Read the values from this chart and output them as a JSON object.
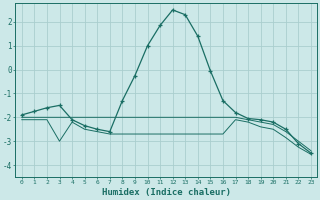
{
  "xlabel": "Humidex (Indice chaleur)",
  "bg_color": "#cce8e8",
  "grid_color": "#aacece",
  "line_color": "#1a6e64",
  "ylim": [
    -4.5,
    2.8
  ],
  "xlim": [
    -0.5,
    23.5
  ],
  "curve1_x": [
    0,
    1,
    2,
    3,
    4,
    5,
    6,
    7,
    8,
    9,
    10,
    11,
    12,
    13,
    14,
    15,
    16,
    17,
    18,
    19,
    20,
    21,
    22,
    23
  ],
  "curve1_y": [
    -1.9,
    -1.75,
    -1.6,
    -1.5,
    -2.1,
    -2.35,
    -2.5,
    -2.6,
    -1.3,
    -0.25,
    1.0,
    1.85,
    2.5,
    2.3,
    1.4,
    -0.05,
    -1.3,
    -1.8,
    -2.05,
    -2.1,
    -2.2,
    -2.5,
    -3.1,
    -3.5
  ],
  "curve2_x": [
    0,
    1,
    2,
    3,
    4,
    5,
    6,
    7,
    8,
    9,
    10,
    11,
    12,
    13,
    14,
    15,
    16,
    17,
    18,
    19,
    20,
    21,
    22,
    23
  ],
  "curve2_y": [
    -2.0,
    -2.0,
    -2.0,
    -2.0,
    -2.0,
    -2.0,
    -2.0,
    -2.0,
    -2.0,
    -2.0,
    -2.0,
    -2.0,
    -2.0,
    -2.0,
    -2.0,
    -2.0,
    -2.0,
    -2.0,
    -2.1,
    -2.2,
    -2.3,
    -2.6,
    -3.0,
    -3.4
  ],
  "curve3_x": [
    0,
    1,
    2,
    3,
    4,
    5,
    6,
    7,
    8,
    9,
    10,
    11,
    12,
    13,
    14,
    15,
    16,
    17,
    18,
    19,
    20,
    21,
    22,
    23
  ],
  "curve3_y": [
    -2.1,
    -2.1,
    -2.1,
    -3.0,
    -2.2,
    -2.5,
    -2.6,
    -2.7,
    -2.7,
    -2.7,
    -2.7,
    -2.7,
    -2.7,
    -2.7,
    -2.7,
    -2.7,
    -2.7,
    -2.1,
    -2.2,
    -2.4,
    -2.5,
    -2.85,
    -3.25,
    -3.55
  ],
  "yticks": [
    -4,
    -3,
    -2,
    -1,
    0,
    1,
    2
  ],
  "ytick_labels": [
    "-4",
    "-3",
    "-2",
    "-1",
    "0",
    "1",
    "2"
  ]
}
